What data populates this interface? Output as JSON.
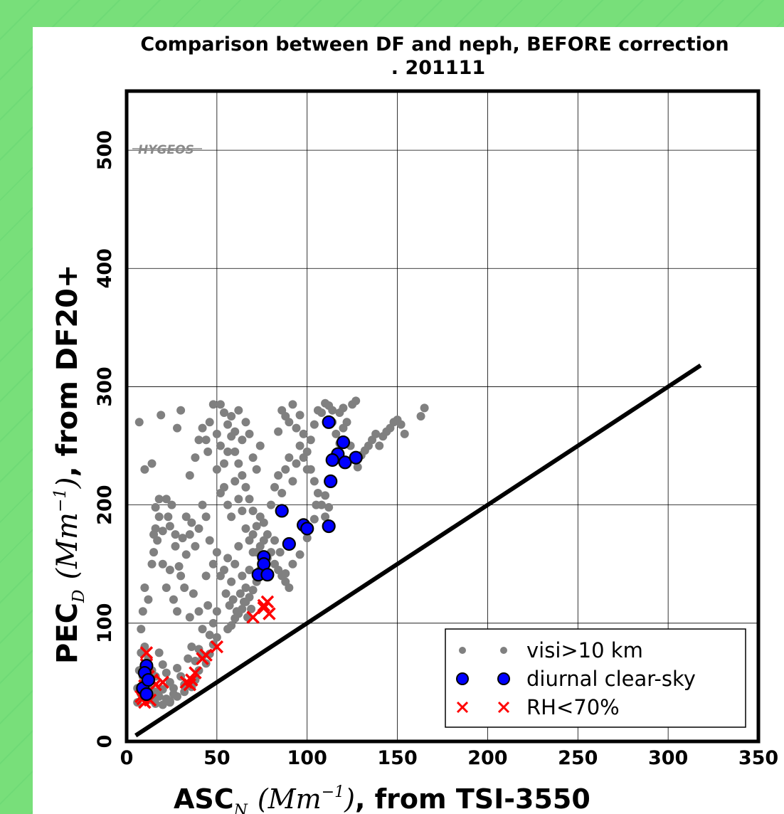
{
  "chart_data": {
    "type": "scatter",
    "title_line1": "Comparison between DF and neph, BEFORE correction",
    "title_line2": ". 201111",
    "xlabel": {
      "prefix": "ASC",
      "sub": "N",
      "math": "(Mm",
      "sup": "−1",
      "close": ")",
      "suffix": ", from TSI-3550"
    },
    "ylabel": {
      "prefix": "PEC",
      "sub": "D",
      "math": "(Mm",
      "sup": "−1",
      "close": ")",
      "suffix": ", from DF20+"
    },
    "xlim": [
      0,
      350
    ],
    "ylim": [
      0,
      550
    ],
    "xticks": [
      "0",
      "50",
      "100",
      "150",
      "200",
      "250",
      "300",
      "350"
    ],
    "yticks": [
      "0",
      "100",
      "200",
      "300",
      "400",
      "500"
    ],
    "grid": true,
    "watermark": "HYGEOS",
    "legend_position": "lower-right",
    "legend": [
      {
        "label": "visi>10 km",
        "marker": "dot",
        "color": "#808080"
      },
      {
        "label": "diurnal clear-sky",
        "marker": "circle",
        "color": "#0000ff"
      },
      {
        "label": "RH<70%",
        "marker": "x",
        "color": "#ff0000"
      }
    ],
    "reference_line": {
      "x": [
        5,
        318
      ],
      "y": [
        5,
        318
      ],
      "color": "#000000"
    },
    "series": [
      {
        "name": "visi>10 km",
        "color": "#808080",
        "points": [
          [
            7,
            270
          ],
          [
            10,
            230
          ],
          [
            19,
            276
          ],
          [
            14,
            235
          ],
          [
            8,
            95
          ],
          [
            9,
            110
          ],
          [
            10,
            130
          ],
          [
            12,
            120
          ],
          [
            14,
            150
          ],
          [
            15,
            160
          ],
          [
            16,
            180
          ],
          [
            17,
            170
          ],
          [
            18,
            190
          ],
          [
            15,
            175
          ],
          [
            20,
            150
          ],
          [
            22,
            130
          ],
          [
            24,
            145
          ],
          [
            25,
            200
          ],
          [
            23,
            190
          ],
          [
            27,
            165
          ],
          [
            26,
            120
          ],
          [
            30,
            140
          ],
          [
            32,
            130
          ],
          [
            28,
            110
          ],
          [
            35,
            105
          ],
          [
            37,
            125
          ],
          [
            40,
            110
          ],
          [
            42,
            95
          ],
          [
            44,
            140
          ],
          [
            45,
            115
          ],
          [
            46,
            90
          ],
          [
            48,
            100
          ],
          [
            50,
            110
          ],
          [
            10,
            80
          ],
          [
            12,
            70
          ],
          [
            14,
            60
          ],
          [
            16,
            55
          ],
          [
            18,
            75
          ],
          [
            20,
            65
          ],
          [
            22,
            58
          ],
          [
            24,
            50
          ],
          [
            26,
            45
          ],
          [
            28,
            62
          ],
          [
            30,
            55
          ],
          [
            32,
            48
          ],
          [
            34,
            70
          ],
          [
            36,
            80
          ],
          [
            38,
            68
          ],
          [
            40,
            78
          ],
          [
            42,
            72
          ],
          [
            8,
            40
          ],
          [
            10,
            50
          ],
          [
            12,
            45
          ],
          [
            14,
            35
          ],
          [
            16,
            42
          ],
          [
            18,
            38
          ],
          [
            20,
            44
          ],
          [
            22,
            36
          ],
          [
            24,
            33
          ],
          [
            26,
            40
          ],
          [
            6,
            33
          ],
          [
            6,
            45
          ],
          [
            7,
            60
          ],
          [
            8,
            75
          ],
          [
            9,
            55
          ],
          [
            33,
            190
          ],
          [
            35,
            175
          ],
          [
            38,
            165
          ],
          [
            40,
            180
          ],
          [
            42,
            200
          ],
          [
            44,
            190
          ],
          [
            46,
            170
          ],
          [
            48,
            150
          ],
          [
            50,
            160
          ],
          [
            52,
            140
          ],
          [
            54,
            145
          ],
          [
            56,
            155
          ],
          [
            58,
            135
          ],
          [
            60,
            150
          ],
          [
            62,
            165
          ],
          [
            64,
            140
          ],
          [
            66,
            130
          ],
          [
            68,
            145
          ],
          [
            70,
            160
          ],
          [
            55,
            125
          ],
          [
            57,
            115
          ],
          [
            59,
            120
          ],
          [
            61,
            110
          ],
          [
            63,
            125
          ],
          [
            65,
            118
          ],
          [
            67,
            105
          ],
          [
            69,
            112
          ],
          [
            42,
            265
          ],
          [
            44,
            255
          ],
          [
            46,
            270
          ],
          [
            48,
            285
          ],
          [
            50,
            260
          ],
          [
            52,
            250
          ],
          [
            54,
            235
          ],
          [
            56,
            245
          ],
          [
            58,
            275
          ],
          [
            60,
            262
          ],
          [
            62,
            280
          ],
          [
            64,
            255
          ],
          [
            66,
            270
          ],
          [
            68,
            260
          ],
          [
            70,
            240
          ],
          [
            72,
            230
          ],
          [
            74,
            250
          ],
          [
            50,
            230
          ],
          [
            52,
            210
          ],
          [
            54,
            215
          ],
          [
            56,
            200
          ],
          [
            58,
            190
          ],
          [
            60,
            220
          ],
          [
            62,
            205
          ],
          [
            64,
            195
          ],
          [
            66,
            180
          ],
          [
            68,
            170
          ],
          [
            70,
            175
          ],
          [
            72,
            160
          ],
          [
            74,
            165
          ],
          [
            76,
            170
          ],
          [
            78,
            155
          ],
          [
            80,
            160
          ],
          [
            82,
            150
          ],
          [
            84,
            145
          ],
          [
            86,
            140
          ],
          [
            88,
            135
          ],
          [
            90,
            130
          ],
          [
            80,
            200
          ],
          [
            82,
            215
          ],
          [
            84,
            225
          ],
          [
            86,
            210
          ],
          [
            88,
            230
          ],
          [
            90,
            240
          ],
          [
            92,
            220
          ],
          [
            94,
            235
          ],
          [
            96,
            250
          ],
          [
            98,
            260
          ],
          [
            100,
            245
          ],
          [
            102,
            230
          ],
          [
            104,
            220
          ],
          [
            106,
            210
          ],
          [
            108,
            200
          ],
          [
            110,
            190
          ],
          [
            84,
            262
          ],
          [
            86,
            280
          ],
          [
            88,
            275
          ],
          [
            90,
            270
          ],
          [
            92,
            285
          ],
          [
            94,
            265
          ],
          [
            96,
            276
          ],
          [
            98,
            240
          ],
          [
            100,
            230
          ],
          [
            102,
            255
          ],
          [
            104,
            268
          ],
          [
            106,
            280
          ],
          [
            108,
            278
          ],
          [
            110,
            286
          ],
          [
            112,
            284
          ],
          [
            114,
            270
          ],
          [
            116,
            260
          ],
          [
            118,
            252
          ],
          [
            120,
            265
          ],
          [
            122,
            270
          ],
          [
            124,
            250
          ],
          [
            126,
            240
          ],
          [
            128,
            232
          ],
          [
            130,
            242
          ],
          [
            132,
            246
          ],
          [
            134,
            250
          ],
          [
            136,
            255
          ],
          [
            138,
            260
          ],
          [
            140,
            250
          ],
          [
            142,
            258
          ],
          [
            144,
            262
          ],
          [
            146,
            265
          ],
          [
            148,
            270
          ],
          [
            150,
            272
          ],
          [
            152,
            268
          ],
          [
            154,
            260
          ],
          [
            163,
            275
          ],
          [
            165,
            282
          ],
          [
            114,
            280
          ],
          [
            118,
            278
          ],
          [
            120,
            282
          ],
          [
            125,
            285
          ],
          [
            127,
            288
          ],
          [
            30,
            280
          ],
          [
            28,
            265
          ],
          [
            35,
            225
          ],
          [
            38,
            240
          ],
          [
            40,
            255
          ],
          [
            45,
            245
          ],
          [
            36,
            185
          ],
          [
            31,
            172
          ],
          [
            33,
            158
          ],
          [
            29,
            148
          ],
          [
            27,
            175
          ],
          [
            24,
            182
          ],
          [
            20,
            178
          ],
          [
            18,
            205
          ],
          [
            16,
            198
          ],
          [
            22,
            205
          ],
          [
            105,
            200
          ],
          [
            110,
            208
          ],
          [
            112,
            198
          ],
          [
            104,
            188
          ],
          [
            100,
            172
          ],
          [
            96,
            158
          ],
          [
            92,
            150
          ],
          [
            88,
            142
          ],
          [
            85,
            160
          ],
          [
            82,
            170
          ],
          [
            78,
            175
          ],
          [
            76,
            185
          ],
          [
            74,
            190
          ],
          [
            72,
            182
          ],
          [
            70,
            195
          ],
          [
            68,
            205
          ],
          [
            66,
            215
          ],
          [
            64,
            225
          ],
          [
            62,
            235
          ],
          [
            60,
            245
          ],
          [
            58,
            258
          ],
          [
            56,
            268
          ],
          [
            54,
            278
          ],
          [
            52,
            285
          ],
          [
            74,
            145
          ],
          [
            72,
            135
          ],
          [
            70,
            128
          ],
          [
            68,
            122
          ],
          [
            66,
            118
          ],
          [
            64,
            112
          ],
          [
            62,
            108
          ],
          [
            60,
            104
          ],
          [
            58,
            98
          ],
          [
            56,
            95
          ],
          [
            12,
            36
          ],
          [
            16,
            32
          ],
          [
            20,
            31
          ],
          [
            24,
            34
          ],
          [
            28,
            38
          ],
          [
            32,
            42
          ],
          [
            36,
            46
          ],
          [
            38,
            52
          ],
          [
            40,
            60
          ],
          [
            44,
            66
          ],
          [
            46,
            74
          ],
          [
            48,
            82
          ],
          [
            50,
            88
          ]
        ]
      },
      {
        "name": "diurnal clear-sky",
        "color": "#0000ff",
        "points": [
          [
            112,
            270
          ],
          [
            120,
            253
          ],
          [
            117,
            243
          ],
          [
            114,
            238
          ],
          [
            121,
            236
          ],
          [
            127,
            240
          ],
          [
            113,
            220
          ],
          [
            86,
            195
          ],
          [
            98,
            183
          ],
          [
            100,
            180
          ],
          [
            112,
            182
          ],
          [
            90,
            167
          ],
          [
            76,
            156
          ],
          [
            76,
            150
          ],
          [
            73,
            141
          ],
          [
            78,
            141
          ],
          [
            11,
            64
          ],
          [
            10,
            58
          ],
          [
            9,
            45
          ],
          [
            11,
            40
          ],
          [
            12,
            52
          ]
        ]
      },
      {
        "name": "RH<70%",
        "color": "#ff0000",
        "points": [
          [
            70,
            105
          ],
          [
            76,
            115
          ],
          [
            78,
            118
          ],
          [
            76,
            113
          ],
          [
            79,
            108
          ],
          [
            50,
            80
          ],
          [
            44,
            73
          ],
          [
            42,
            70
          ],
          [
            38,
            58
          ],
          [
            36,
            52
          ],
          [
            35,
            48
          ],
          [
            33,
            50
          ],
          [
            11,
            75
          ],
          [
            11,
            65
          ],
          [
            12,
            55
          ],
          [
            10,
            47
          ],
          [
            14,
            52
          ],
          [
            16,
            48
          ],
          [
            20,
            50
          ],
          [
            8,
            38
          ],
          [
            10,
            33
          ],
          [
            13,
            35
          ],
          [
            12,
            42
          ],
          [
            9,
            36
          ]
        ]
      }
    ]
  }
}
